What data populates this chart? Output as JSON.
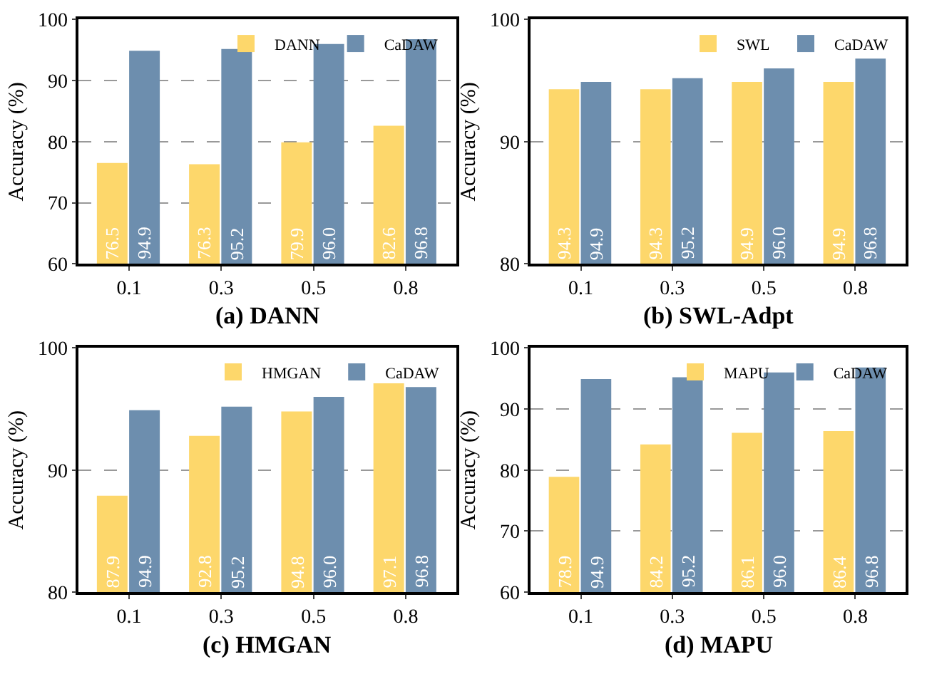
{
  "chart_data": [
    {
      "type": "bar",
      "title": "(a) DANN",
      "ylabel": "Accuracy (%)",
      "categories": [
        "0.1",
        "0.3",
        "0.5",
        "0.8"
      ],
      "series": [
        {
          "name": "DANN",
          "color": "#fdd76b",
          "values": [
            76.5,
            76.3,
            79.9,
            82.6
          ],
          "value_labels": [
            "76.5",
            "76.3",
            "79.9",
            "82.6"
          ]
        },
        {
          "name": "CaDAW",
          "color": "#6d8eae",
          "values": [
            94.9,
            95.2,
            96.0,
            96.8
          ],
          "value_labels": [
            "94.9",
            "95.2",
            "96.0",
            "96.8"
          ]
        }
      ],
      "ylim": [
        60,
        100
      ],
      "yticks": [
        60,
        70,
        80,
        90,
        100
      ],
      "grid": "y",
      "legend": "top right"
    },
    {
      "type": "bar",
      "title": "(b) SWL-Adpt",
      "ylabel": "Accuracy (%)",
      "categories": [
        "0.1",
        "0.3",
        "0.5",
        "0.8"
      ],
      "series": [
        {
          "name": "SWL",
          "color": "#fdd76b",
          "values": [
            94.3,
            94.3,
            94.9,
            94.9
          ],
          "value_labels": [
            "94.3",
            "94.3",
            "94.9",
            "94.9"
          ]
        },
        {
          "name": "CaDAW",
          "color": "#6d8eae",
          "values": [
            94.9,
            95.2,
            96.0,
            96.8
          ],
          "value_labels": [
            "94.9",
            "95.2",
            "96.0",
            "96.8"
          ]
        }
      ],
      "ylim": [
        80,
        100
      ],
      "yticks": [
        80,
        90,
        100
      ],
      "grid": "y",
      "legend": "top right"
    },
    {
      "type": "bar",
      "title": "(c) HMGAN",
      "ylabel": "Accuracy (%)",
      "categories": [
        "0.1",
        "0.3",
        "0.5",
        "0.8"
      ],
      "series": [
        {
          "name": "HMGAN",
          "color": "#fdd76b",
          "values": [
            87.9,
            92.8,
            94.8,
            97.1
          ],
          "value_labels": [
            "87.9",
            "92.8",
            "94.8",
            "97.1"
          ]
        },
        {
          "name": "CaDAW",
          "color": "#6d8eae",
          "values": [
            94.9,
            95.2,
            96.0,
            96.8
          ],
          "value_labels": [
            "94.9",
            "95.2",
            "96.0",
            "96.8"
          ]
        }
      ],
      "ylim": [
        80,
        100
      ],
      "yticks": [
        80,
        90,
        100
      ],
      "grid": "y",
      "legend": "top right"
    },
    {
      "type": "bar",
      "title": "(d) MAPU",
      "ylabel": "Accuracy (%)",
      "categories": [
        "0.1",
        "0.3",
        "0.5",
        "0.8"
      ],
      "series": [
        {
          "name": "MAPU",
          "color": "#fdd76b",
          "values": [
            78.9,
            84.2,
            86.1,
            86.4
          ],
          "value_labels": [
            "78.9",
            "84.2",
            "86.1",
            "86.4"
          ]
        },
        {
          "name": "CaDAW",
          "color": "#6d8eae",
          "values": [
            94.9,
            95.2,
            96.0,
            96.8
          ],
          "value_labels": [
            "94.9",
            "95.2",
            "96.0",
            "96.8"
          ]
        }
      ],
      "ylim": [
        60,
        100
      ],
      "yticks": [
        60,
        70,
        80,
        90,
        100
      ],
      "grid": "y",
      "legend": "top right"
    }
  ]
}
